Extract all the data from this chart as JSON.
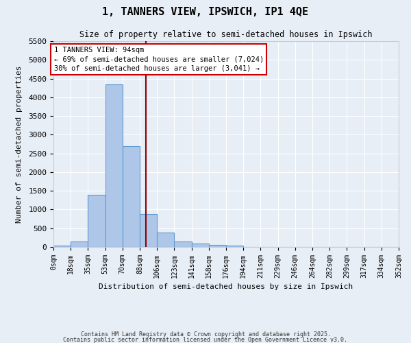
{
  "title": "1, TANNERS VIEW, IPSWICH, IP1 4QE",
  "subtitle": "Size of property relative to semi-detached houses in Ipswich",
  "xlabel": "Distribution of semi-detached houses by size in Ipswich",
  "ylabel": "Number of semi-detached properties",
  "bar_values": [
    30,
    150,
    1400,
    4350,
    2700,
    880,
    380,
    150,
    100,
    55,
    30,
    5,
    0,
    0,
    0,
    0,
    0,
    0,
    0,
    0
  ],
  "bin_labels": [
    "0sqm",
    "18sqm",
    "35sqm",
    "53sqm",
    "70sqm",
    "88sqm",
    "106sqm",
    "123sqm",
    "141sqm",
    "158sqm",
    "176sqm",
    "194sqm",
    "211sqm",
    "229sqm",
    "246sqm",
    "264sqm",
    "282sqm",
    "299sqm",
    "317sqm",
    "334sqm",
    "352sqm"
  ],
  "bar_color": "#aec6e8",
  "bar_edge_color": "#5b9bd5",
  "background_color": "#e8eef6",
  "grid_color": "#ffffff",
  "vline_x": 5.35,
  "vline_color": "#8b0000",
  "annotation_text": "1 TANNERS VIEW: 94sqm\n← 69% of semi-detached houses are smaller (7,024)\n30% of semi-detached houses are larger (3,041) →",
  "annotation_box_color": "#ffffff",
  "annotation_box_edge": "#cc0000",
  "ylim": [
    0,
    5500
  ],
  "yticks": [
    0,
    500,
    1000,
    1500,
    2000,
    2500,
    3000,
    3500,
    4000,
    4500,
    5000,
    5500
  ],
  "footer_line1": "Contains HM Land Registry data © Crown copyright and database right 2025.",
  "footer_line2": "Contains public sector information licensed under the Open Government Licence v3.0."
}
